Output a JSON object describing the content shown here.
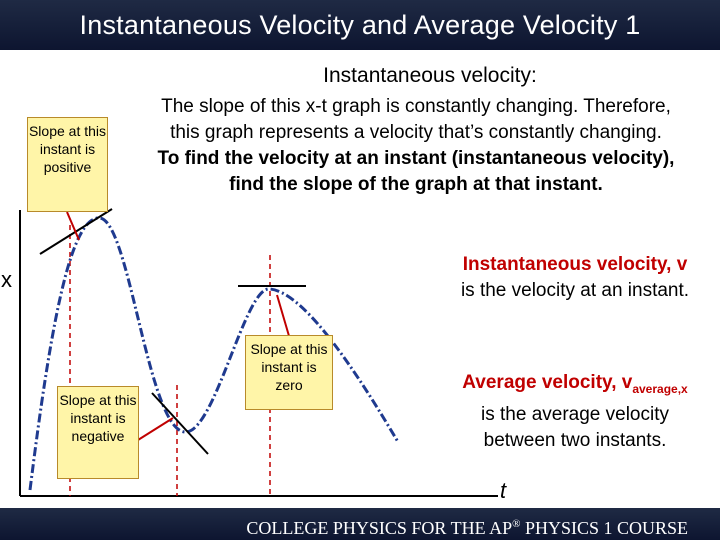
{
  "title": "Instantaneous Velocity and Average Velocity 1",
  "heading": "Instantaneous velocity:",
  "intro": {
    "line1": "The slope of this x-t graph is constantly changing. Therefore,",
    "line2": "this graph represents a velocity that’s constantly changing.",
    "line3": "To find the velocity at an instant (instantaneous velocity),",
    "line4": "find the slope of the graph at that instant."
  },
  "callouts": {
    "positive": "Slope at this instant is positive",
    "negative": "Slope at this instant is negative",
    "zero": "Slope at this instant is zero"
  },
  "axis": {
    "x": "x",
    "t": "t"
  },
  "instantaneous": {
    "term": "Instantaneous velocity, v",
    "desc": "is the velocity at an instant."
  },
  "average": {
    "term_main": "Average velocity, v",
    "term_sub": "average,x",
    "desc": "is the average velocity between two instants."
  },
  "footer": {
    "pre": "COLLEGE PHYSICS FOR THE AP",
    "reg": "®",
    "post": " PHYSICS 1 COURSE"
  },
  "colors": {
    "accent": "#c00000",
    "callout_bg": "#fff5a8",
    "bar": "#1f2a44"
  }
}
